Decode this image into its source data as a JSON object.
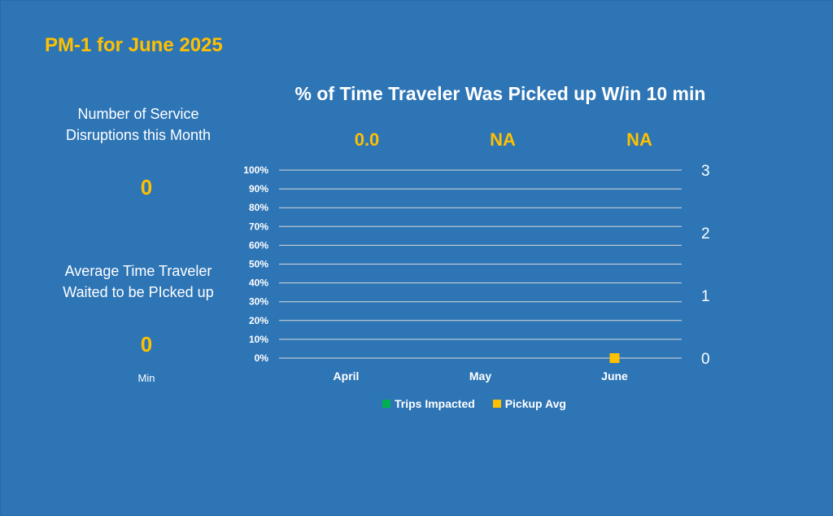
{
  "page": {
    "title": "PM-1 for June 2025"
  },
  "left_panel": {
    "disruptions_label_line1": "Number of Service",
    "disruptions_label_line2": "Disruptions this Month",
    "disruptions_value": "0",
    "wait_label_line1": "Average Time Traveler",
    "wait_label_line2": "Waited to be PIcked up",
    "wait_value": "0",
    "wait_unit": "Min"
  },
  "chart_data": {
    "type": "bar",
    "title": "% of Time Traveler Was Picked up W/in 10 min",
    "categories": [
      "April",
      "May",
      "June"
    ],
    "top_values": [
      "0.0",
      "NA",
      "NA"
    ],
    "y_left_ticks": [
      "100%",
      "90%",
      "80%",
      "70%",
      "60%",
      "50%",
      "40%",
      "30%",
      "20%",
      "10%",
      "0%"
    ],
    "y_left_lim": [
      0,
      100
    ],
    "y_right_ticks": [
      "3",
      "2",
      "1",
      "0"
    ],
    "y_right_lim": [
      0,
      3
    ],
    "grid": true,
    "series": [
      {
        "name": "Trips Impacted",
        "type": "bar",
        "axis": "left",
        "color": "#00b050",
        "values": [
          0,
          0,
          0
        ]
      },
      {
        "name": "Pickup Avg",
        "type": "marker",
        "axis": "right",
        "color": "#ffc000",
        "values": [
          null,
          null,
          0
        ]
      }
    ],
    "legend_position": "bottom"
  }
}
